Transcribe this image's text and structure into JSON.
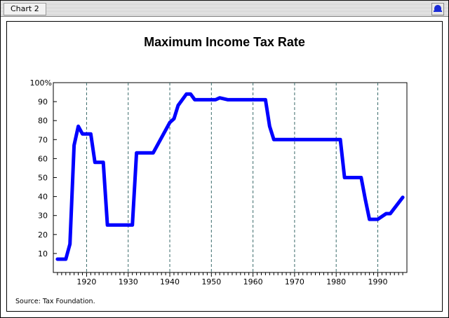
{
  "window": {
    "tab_label": "Chart 2"
  },
  "icons": {
    "top_right": "bell-icon"
  },
  "colors": {
    "series": "#0000ff",
    "gridline": "#3a6b6b",
    "accent": "#1a2bd6"
  },
  "chart_data": {
    "type": "line",
    "title": "Maximum Income Tax Rate",
    "xlabel": "",
    "ylabel": "",
    "xlim": [
      1912,
      1997
    ],
    "ylim": [
      0,
      100
    ],
    "x_ticks": [
      1920,
      1930,
      1940,
      1950,
      1960,
      1970,
      1980,
      1990
    ],
    "y_ticks": [
      10,
      20,
      30,
      40,
      50,
      60,
      70,
      80,
      90,
      100
    ],
    "y_tick_labels": [
      "10",
      "20",
      "30",
      "40",
      "50",
      "60",
      "70",
      "80",
      "90",
      "100%"
    ],
    "grid": "vertical-dashed",
    "series": [
      {
        "x": [
          1913,
          1915,
          1916,
          1917,
          1918,
          1919,
          1921,
          1922,
          1924,
          1925,
          1931,
          1932,
          1936,
          1940,
          1941,
          1942,
          1944,
          1945,
          1946,
          1951,
          1952,
          1954,
          1963,
          1964,
          1965,
          1981,
          1982,
          1986,
          1987,
          1988,
          1990,
          1992,
          1993,
          1996
        ],
        "y": [
          7,
          7,
          15,
          67,
          77,
          73,
          73,
          58,
          58,
          25,
          25,
          63,
          63,
          79,
          81,
          88,
          94,
          94,
          91,
          91,
          92,
          91,
          91,
          77,
          70,
          70,
          50,
          50,
          38.5,
          28,
          28,
          31,
          31,
          39.6
        ]
      }
    ],
    "source": "Source:  Tax Foundation."
  }
}
